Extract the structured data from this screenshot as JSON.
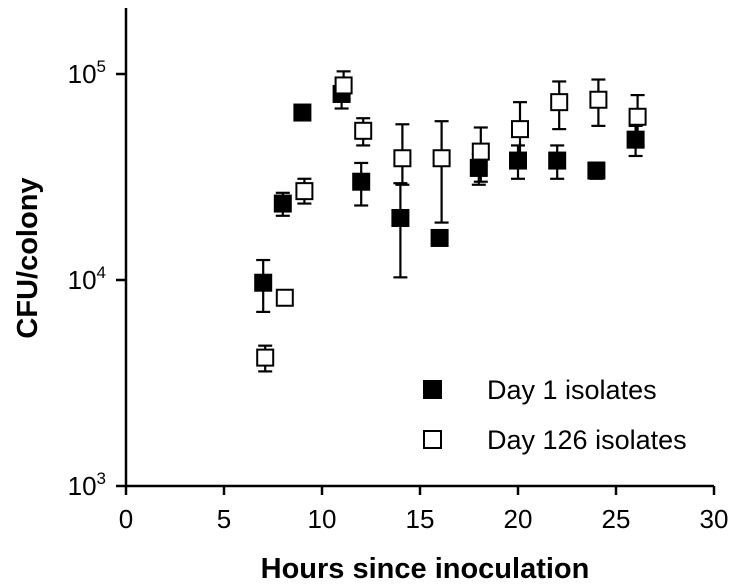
{
  "chart_data": {
    "type": "scatter",
    "xlabel": "Hours since inoculation",
    "ylabel": "CFU/colony",
    "xlim": [
      0,
      30
    ],
    "ylim": [
      1000,
      200000
    ],
    "yscale": "log",
    "grid": false,
    "legend_position": "bottom-right",
    "x_ticks": [
      {
        "value": 0,
        "label": "0"
      },
      {
        "value": 5,
        "label": "5"
      },
      {
        "value": 10,
        "label": "10"
      },
      {
        "value": 15,
        "label": "15"
      },
      {
        "value": 20,
        "label": "20"
      },
      {
        "value": 25,
        "label": "25"
      },
      {
        "value": 30,
        "label": "30"
      }
    ],
    "y_ticks": [
      {
        "value": 1000,
        "base": "10",
        "exp": "3"
      },
      {
        "value": 10000,
        "base": "10",
        "exp": "4"
      },
      {
        "value": 100000,
        "base": "10",
        "exp": "5"
      }
    ],
    "series": [
      {
        "name": "Day 1 isolates",
        "marker": "filled-square",
        "color": "#000000",
        "points": [
          {
            "x": 7,
            "y": 9700,
            "lo": 7000,
            "hi": 12500
          },
          {
            "x": 8,
            "y": 23500,
            "lo": 20500,
            "hi": 26500
          },
          {
            "x": 9,
            "y": 65000,
            "lo": 61000,
            "hi": 69000
          },
          {
            "x": 11,
            "y": 80000,
            "lo": 68000,
            "hi": 95000
          },
          {
            "x": 12,
            "y": 30000,
            "lo": 23000,
            "hi": 37000
          },
          {
            "x": 14,
            "y": 20000,
            "lo": 10300,
            "hi": 29500
          },
          {
            "x": 16,
            "y": 16000,
            "lo": 15000,
            "hi": 17000
          },
          {
            "x": 18,
            "y": 35000,
            "lo": 29000,
            "hi": 41000
          },
          {
            "x": 20,
            "y": 38000,
            "lo": 31000,
            "hi": 45000
          },
          {
            "x": 22,
            "y": 38000,
            "lo": 31000,
            "hi": 45000
          },
          {
            "x": 24,
            "y": 34000,
            "lo": 31000,
            "hi": 37000
          },
          {
            "x": 26,
            "y": 48000,
            "lo": 40000,
            "hi": 56000
          }
        ]
      },
      {
        "name": "Day 126 isolates",
        "marker": "open-square",
        "color": "#000000",
        "points": [
          {
            "x": 7,
            "y": 4200,
            "lo": 3600,
            "hi": 4800
          },
          {
            "x": 8,
            "y": 8200,
            "lo": 7800,
            "hi": 8600
          },
          {
            "x": 9,
            "y": 27000,
            "lo": 23500,
            "hi": 31000
          },
          {
            "x": 11,
            "y": 88000,
            "lo": 75000,
            "hi": 103000
          },
          {
            "x": 12,
            "y": 53000,
            "lo": 45000,
            "hi": 61000
          },
          {
            "x": 14,
            "y": 39000,
            "lo": 29000,
            "hi": 57000
          },
          {
            "x": 16,
            "y": 39000,
            "lo": 19000,
            "hi": 59000
          },
          {
            "x": 18,
            "y": 42000,
            "lo": 30000,
            "hi": 55000
          },
          {
            "x": 20,
            "y": 54000,
            "lo": 35000,
            "hi": 73000
          },
          {
            "x": 22,
            "y": 73000,
            "lo": 54000,
            "hi": 92000
          },
          {
            "x": 24,
            "y": 75000,
            "lo": 56000,
            "hi": 94000
          },
          {
            "x": 26,
            "y": 62000,
            "lo": 45000,
            "hi": 79000
          }
        ]
      }
    ]
  }
}
